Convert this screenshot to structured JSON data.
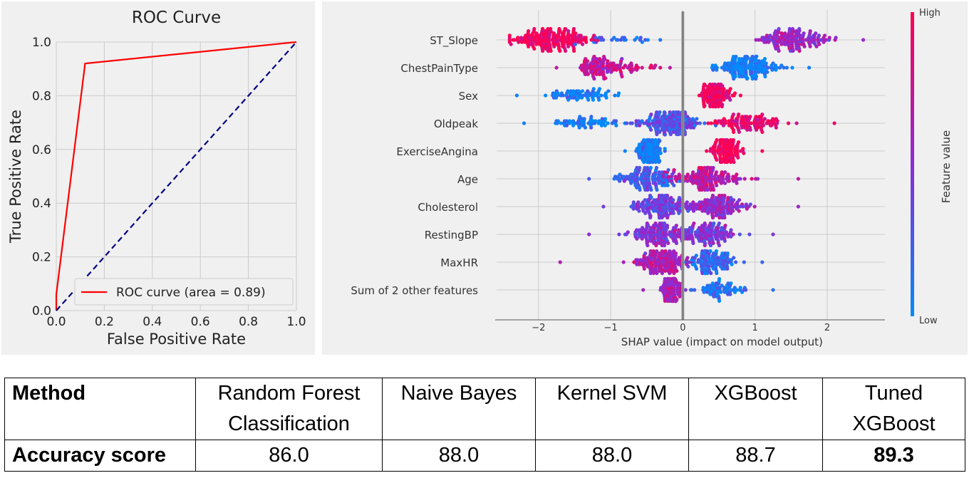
{
  "chart_data": [
    {
      "type": "line",
      "title": "ROC Curve",
      "xlabel": "False Positive Rate",
      "ylabel": "True Positive Rate",
      "xlim": [
        0.0,
        1.0
      ],
      "ylim": [
        0.0,
        1.0
      ],
      "x_ticks": [
        "0.0",
        "0.2",
        "0.4",
        "0.6",
        "0.8",
        "1.0"
      ],
      "y_ticks": [
        "0.0",
        "0.2",
        "0.4",
        "0.6",
        "0.8",
        "1.0"
      ],
      "grid": true,
      "legend_position": "lower-right",
      "series": [
        {
          "name": "ROC curve (area = 0.89)",
          "color": "#ff0000",
          "style": "solid",
          "x": [
            0.0,
            0.0,
            0.12,
            1.0
          ],
          "y": [
            0.0,
            0.06,
            0.92,
            1.0
          ]
        },
        {
          "color": "#000080",
          "style": "dashed",
          "x": [
            0.0,
            1.0
          ],
          "y": [
            0.0,
            1.0
          ]
        }
      ]
    },
    {
      "type": "scatter",
      "subtype": "beeswarm",
      "xlabel": "SHAP value (impact on model output)",
      "xlim": [
        -2.6,
        2.8
      ],
      "x_ticks": [
        -2,
        -1,
        0,
        1,
        2
      ],
      "x_tick_labels": [
        "−2",
        "−1",
        "0",
        "1",
        "2"
      ],
      "colorbar": {
        "label": "Feature value",
        "high_label": "High",
        "low_label": "Low",
        "low_color": "#008bfb",
        "mid_color": "#8c2bd6",
        "high_color": "#ff0052"
      },
      "features": [
        {
          "name": "ST_Slope",
          "min": -2.4,
          "max": 2.5,
          "clusters": [
            {
              "center": -1.8,
              "spread": 0.5,
              "value": 0.95,
              "count": 190
            },
            {
              "center": -0.8,
              "spread": 0.5,
              "value": 0.15,
              "count": 25
            },
            {
              "center": 1.5,
              "spread": 0.45,
              "value": 0.55,
              "count": 150
            }
          ]
        },
        {
          "name": "ChestPainType",
          "min": -1.75,
          "max": 1.75,
          "clusters": [
            {
              "center": -1.1,
              "spread": 0.35,
              "value": 0.72,
              "count": 110
            },
            {
              "center": -0.5,
              "spread": 0.2,
              "value": 0.85,
              "count": 15
            },
            {
              "center": 0.9,
              "spread": 0.4,
              "value": 0.05,
              "count": 160
            }
          ]
        },
        {
          "name": "Sex",
          "min": -2.3,
          "max": 0.8,
          "clusters": [
            {
              "center": -1.4,
              "spread": 0.45,
              "value": 0.05,
              "count": 70
            },
            {
              "center": 0.45,
              "spread": 0.17,
              "value": 0.97,
              "count": 140
            }
          ]
        },
        {
          "name": "Oldpeak",
          "min": -2.2,
          "max": 2.1,
          "clusters": [
            {
              "center": -1.3,
              "spread": 0.55,
              "value": 0.05,
              "count": 60
            },
            {
              "center": -0.2,
              "spread": 0.4,
              "value": 0.3,
              "count": 170
            },
            {
              "center": 0.9,
              "spread": 0.45,
              "value": 0.9,
              "count": 110
            }
          ]
        },
        {
          "name": "ExerciseAngina",
          "min": -0.8,
          "max": 1.1,
          "clusters": [
            {
              "center": -0.45,
              "spread": 0.15,
              "value": 0.05,
              "count": 150
            },
            {
              "center": 0.6,
              "spread": 0.2,
              "value": 0.97,
              "count": 110
            }
          ]
        },
        {
          "name": "Age",
          "min": -1.3,
          "max": 1.6,
          "clusters": [
            {
              "center": -0.5,
              "spread": 0.35,
              "value": 0.25,
              "count": 130
            },
            {
              "center": 0.3,
              "spread": 0.45,
              "value": 0.7,
              "count": 150
            }
          ]
        },
        {
          "name": "Cholesterol",
          "min": -1.1,
          "max": 1.6,
          "clusters": [
            {
              "center": -0.3,
              "spread": 0.4,
              "value": 0.4,
              "count": 140
            },
            {
              "center": 0.5,
              "spread": 0.4,
              "value": 0.55,
              "count": 140
            }
          ]
        },
        {
          "name": "RestingBP",
          "min": -1.3,
          "max": 1.25,
          "clusters": [
            {
              "center": -0.3,
              "spread": 0.35,
              "value": 0.5,
              "count": 150
            },
            {
              "center": 0.35,
              "spread": 0.35,
              "value": 0.45,
              "count": 120
            }
          ]
        },
        {
          "name": "MaxHR",
          "min": -1.7,
          "max": 1.1,
          "clusters": [
            {
              "center": -0.3,
              "spread": 0.35,
              "value": 0.65,
              "count": 160
            },
            {
              "center": 0.4,
              "spread": 0.3,
              "value": 0.2,
              "count": 120
            }
          ]
        },
        {
          "name": "Sum of 2 other features",
          "min": -0.55,
          "max": 1.25,
          "clusters": [
            {
              "center": -0.15,
              "spread": 0.12,
              "value": 0.6,
              "count": 130
            },
            {
              "center": 0.5,
              "spread": 0.3,
              "value": 0.15,
              "count": 70
            }
          ]
        }
      ]
    }
  ],
  "table": {
    "header": [
      "Method",
      "Random Forest Classification",
      "Naive Bayes",
      "Kernel SVM",
      "XGBoost",
      "Tuned XGBoost"
    ],
    "header_lines": [
      [
        "Method"
      ],
      [
        "Random Forest",
        "Classification"
      ],
      [
        "Naive Bayes"
      ],
      [
        "Kernel SVM"
      ],
      [
        "XGBoost"
      ],
      [
        "Tuned",
        "XGBoost"
      ]
    ],
    "row_label": "Accuracy score",
    "values": [
      "86.0",
      "88.0",
      "88.0",
      "88.7",
      "89.3"
    ],
    "best_index": 4
  }
}
